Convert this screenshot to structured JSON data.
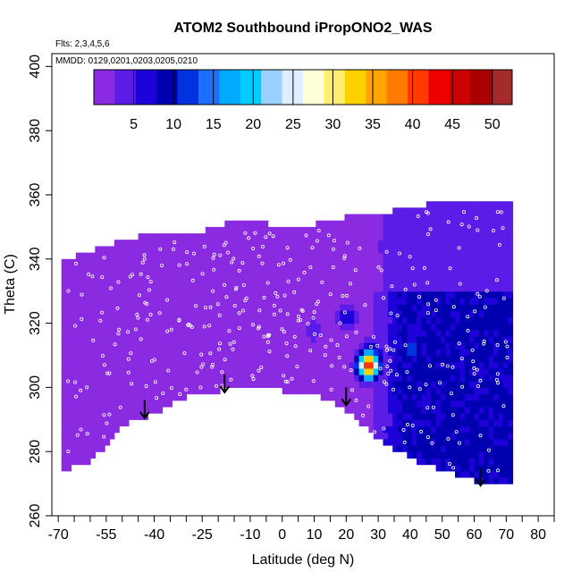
{
  "chart_data": {
    "type": "heatmap",
    "title": "ATOM2 Southbound iPropONO2_WAS",
    "flights_label": "Flts: 2,3,4,5,6",
    "dates_label": "MMDD: 0129,0201,0203,0205,0210",
    "xlabel": "Latitude (deg N)",
    "ylabel": "Theta (C)",
    "xlim": [
      -72,
      85
    ],
    "ylim": [
      260,
      404
    ],
    "x_tick_labels": [
      "-70",
      "-55",
      "-40",
      "-25",
      "-10",
      "0",
      "10",
      "20",
      "30",
      "40",
      "50",
      "60",
      "70",
      "80"
    ],
    "y_ticks": [
      260,
      280,
      300,
      320,
      340,
      360,
      380,
      400
    ],
    "colorbar": {
      "min": 0,
      "max": 52.5,
      "tick_values": [
        5,
        10,
        15,
        20,
        25,
        30,
        35,
        40,
        45,
        50
      ],
      "colors": [
        "#8a2be2",
        "#5a1ce6",
        "#1e00d8",
        "#0000b0",
        "#0033e0",
        "#1e6eff",
        "#00aaff",
        "#00ccff",
        "#9ad0ff",
        "#ddeeff",
        "#ffffd8",
        "#ffee70",
        "#ffd000",
        "#ffa500",
        "#ff7a00",
        "#ff3a00",
        "#ee0000",
        "#cc0000",
        "#aa0000",
        "#a52a2a"
      ]
    },
    "field": {
      "background_value": 2,
      "top_boundary": [
        [
          -69,
          338
        ],
        [
          -62,
          341
        ],
        [
          -45,
          346
        ],
        [
          -28,
          347
        ],
        [
          -14,
          351
        ],
        [
          -10,
          351
        ],
        [
          -5,
          350
        ],
        [
          0,
          348
        ],
        [
          10,
          350
        ],
        [
          20,
          352
        ],
        [
          30,
          353
        ],
        [
          40,
          355
        ],
        [
          50,
          357
        ],
        [
          60,
          357
        ],
        [
          68,
          357
        ]
      ],
      "bottom_boundary": [
        [
          -69,
          274
        ],
        [
          -60,
          277
        ],
        [
          -55,
          282
        ],
        [
          -50,
          288
        ],
        [
          -40,
          292
        ],
        [
          -30,
          297
        ],
        [
          -20,
          299
        ],
        [
          -10,
          300
        ],
        [
          0,
          299
        ],
        [
          10,
          298
        ],
        [
          20,
          293
        ],
        [
          30,
          284
        ],
        [
          40,
          278
        ],
        [
          50,
          274
        ],
        [
          60,
          271
        ],
        [
          72,
          270
        ]
      ],
      "hotspots": [
        {
          "lat": 42,
          "theta": 305,
          "value": 11
        },
        {
          "lat": 35,
          "theta": 300,
          "value": 9
        },
        {
          "lat": 50,
          "theta": 296,
          "value": 8
        },
        {
          "lat": 55,
          "theta": 282,
          "value": 11
        },
        {
          "lat": 20,
          "theta": 322,
          "value": 8
        },
        {
          "lat": 28,
          "theta": 310,
          "value": 15
        },
        {
          "lat": 27,
          "theta": 307,
          "value": 42
        },
        {
          "lat": 40,
          "theta": 312,
          "value": 13
        },
        {
          "lat": 10,
          "theta": 318,
          "value": 5
        }
      ]
    },
    "arrow_latitudes": [
      -43,
      -18,
      20,
      62
    ],
    "arrow_top_theta": [
      296,
      304,
      300,
      275
    ]
  }
}
